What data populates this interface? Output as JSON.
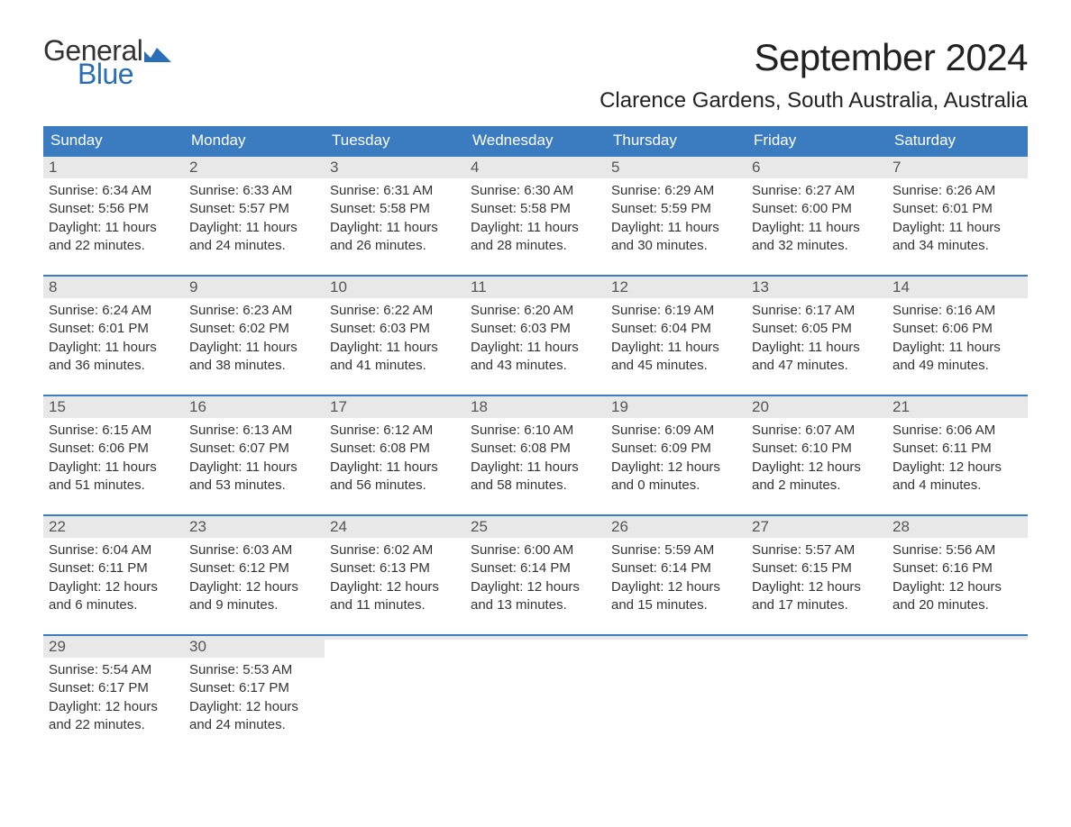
{
  "logo": {
    "word1": "General",
    "word2": "Blue",
    "flag_color": "#2a6eb8"
  },
  "title": "September 2024",
  "location": "Clarence Gardens, South Australia, Australia",
  "colors": {
    "header_bg": "#3b7bbf",
    "header_text": "#ffffff",
    "daynum_bg": "#e8e8e8",
    "week_border": "#3b7bbf",
    "body_text": "#333333",
    "page_bg": "#ffffff"
  },
  "typography": {
    "month_title_fontsize": 42,
    "location_fontsize": 24,
    "dow_fontsize": 17,
    "daynum_fontsize": 17,
    "body_fontsize": 15
  },
  "days_of_week": [
    "Sunday",
    "Monday",
    "Tuesday",
    "Wednesday",
    "Thursday",
    "Friday",
    "Saturday"
  ],
  "weeks": [
    [
      {
        "n": "1",
        "sunrise": "6:34 AM",
        "sunset": "5:56 PM",
        "daylight": "11 hours and 22 minutes."
      },
      {
        "n": "2",
        "sunrise": "6:33 AM",
        "sunset": "5:57 PM",
        "daylight": "11 hours and 24 minutes."
      },
      {
        "n": "3",
        "sunrise": "6:31 AM",
        "sunset": "5:58 PM",
        "daylight": "11 hours and 26 minutes."
      },
      {
        "n": "4",
        "sunrise": "6:30 AM",
        "sunset": "5:58 PM",
        "daylight": "11 hours and 28 minutes."
      },
      {
        "n": "5",
        "sunrise": "6:29 AM",
        "sunset": "5:59 PM",
        "daylight": "11 hours and 30 minutes."
      },
      {
        "n": "6",
        "sunrise": "6:27 AM",
        "sunset": "6:00 PM",
        "daylight": "11 hours and 32 minutes."
      },
      {
        "n": "7",
        "sunrise": "6:26 AM",
        "sunset": "6:01 PM",
        "daylight": "11 hours and 34 minutes."
      }
    ],
    [
      {
        "n": "8",
        "sunrise": "6:24 AM",
        "sunset": "6:01 PM",
        "daylight": "11 hours and 36 minutes."
      },
      {
        "n": "9",
        "sunrise": "6:23 AM",
        "sunset": "6:02 PM",
        "daylight": "11 hours and 38 minutes."
      },
      {
        "n": "10",
        "sunrise": "6:22 AM",
        "sunset": "6:03 PM",
        "daylight": "11 hours and 41 minutes."
      },
      {
        "n": "11",
        "sunrise": "6:20 AM",
        "sunset": "6:03 PM",
        "daylight": "11 hours and 43 minutes."
      },
      {
        "n": "12",
        "sunrise": "6:19 AM",
        "sunset": "6:04 PM",
        "daylight": "11 hours and 45 minutes."
      },
      {
        "n": "13",
        "sunrise": "6:17 AM",
        "sunset": "6:05 PM",
        "daylight": "11 hours and 47 minutes."
      },
      {
        "n": "14",
        "sunrise": "6:16 AM",
        "sunset": "6:06 PM",
        "daylight": "11 hours and 49 minutes."
      }
    ],
    [
      {
        "n": "15",
        "sunrise": "6:15 AM",
        "sunset": "6:06 PM",
        "daylight": "11 hours and 51 minutes."
      },
      {
        "n": "16",
        "sunrise": "6:13 AM",
        "sunset": "6:07 PM",
        "daylight": "11 hours and 53 minutes."
      },
      {
        "n": "17",
        "sunrise": "6:12 AM",
        "sunset": "6:08 PM",
        "daylight": "11 hours and 56 minutes."
      },
      {
        "n": "18",
        "sunrise": "6:10 AM",
        "sunset": "6:08 PM",
        "daylight": "11 hours and 58 minutes."
      },
      {
        "n": "19",
        "sunrise": "6:09 AM",
        "sunset": "6:09 PM",
        "daylight": "12 hours and 0 minutes."
      },
      {
        "n": "20",
        "sunrise": "6:07 AM",
        "sunset": "6:10 PM",
        "daylight": "12 hours and 2 minutes."
      },
      {
        "n": "21",
        "sunrise": "6:06 AM",
        "sunset": "6:11 PM",
        "daylight": "12 hours and 4 minutes."
      }
    ],
    [
      {
        "n": "22",
        "sunrise": "6:04 AM",
        "sunset": "6:11 PM",
        "daylight": "12 hours and 6 minutes."
      },
      {
        "n": "23",
        "sunrise": "6:03 AM",
        "sunset": "6:12 PM",
        "daylight": "12 hours and 9 minutes."
      },
      {
        "n": "24",
        "sunrise": "6:02 AM",
        "sunset": "6:13 PM",
        "daylight": "12 hours and 11 minutes."
      },
      {
        "n": "25",
        "sunrise": "6:00 AM",
        "sunset": "6:14 PM",
        "daylight": "12 hours and 13 minutes."
      },
      {
        "n": "26",
        "sunrise": "5:59 AM",
        "sunset": "6:14 PM",
        "daylight": "12 hours and 15 minutes."
      },
      {
        "n": "27",
        "sunrise": "5:57 AM",
        "sunset": "6:15 PM",
        "daylight": "12 hours and 17 minutes."
      },
      {
        "n": "28",
        "sunrise": "5:56 AM",
        "sunset": "6:16 PM",
        "daylight": "12 hours and 20 minutes."
      }
    ],
    [
      {
        "n": "29",
        "sunrise": "5:54 AM",
        "sunset": "6:17 PM",
        "daylight": "12 hours and 22 minutes."
      },
      {
        "n": "30",
        "sunrise": "5:53 AM",
        "sunset": "6:17 PM",
        "daylight": "12 hours and 24 minutes."
      },
      {
        "empty": true
      },
      {
        "empty": true
      },
      {
        "empty": true
      },
      {
        "empty": true
      },
      {
        "empty": true
      }
    ]
  ],
  "labels": {
    "sunrise": "Sunrise:",
    "sunset": "Sunset:",
    "daylight": "Daylight:"
  }
}
